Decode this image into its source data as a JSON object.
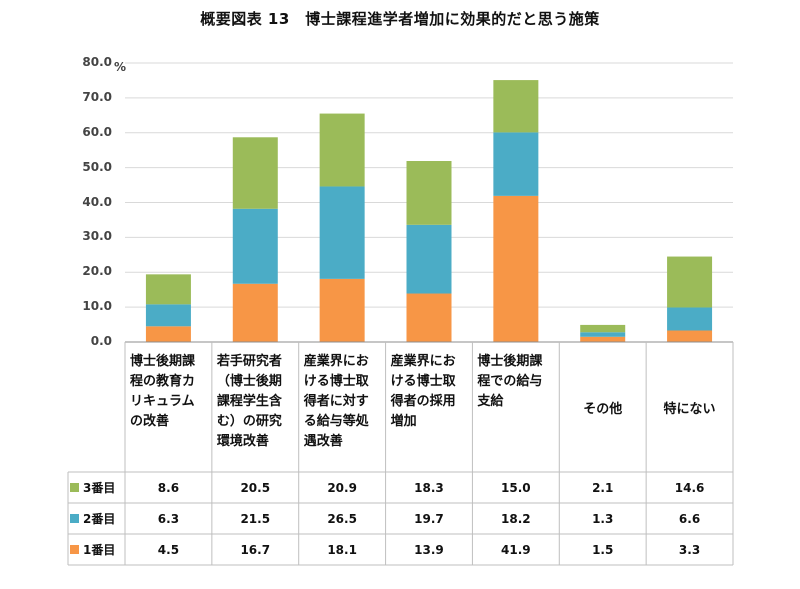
{
  "chart_data": {
    "type": "bar",
    "stacked": true,
    "title": "概要図表 13　博士課程進学者増加に効果的だと思う施策",
    "unit": "%",
    "ylim": [
      0,
      80
    ],
    "yticks": [
      "80.0",
      "70.0",
      "60.0",
      "50.0",
      "40.0",
      "30.0",
      "20.0",
      "10.0",
      "0.0"
    ],
    "grid": true,
    "categories": [
      "博士後期課程の教育カリキュラムの改善",
      "若手研究者（博士後期課程学生含む）の研究環境改善",
      "産業界における博士取得者に対する給与等処遇改善",
      "産業界における博士取得者の採用増加",
      "博士後期課程での給与支給",
      "その他",
      "特にない"
    ],
    "series": [
      {
        "name": "3番目",
        "color": "#9bbb59",
        "values": [
          8.6,
          20.5,
          20.9,
          18.3,
          15.0,
          2.1,
          14.6
        ],
        "labels": [
          "8.6",
          "20.5",
          "20.9",
          "18.3",
          "15.0",
          "2.1",
          "14.6"
        ]
      },
      {
        "name": "2番目",
        "color": "#4bacc6",
        "values": [
          6.3,
          21.5,
          26.5,
          19.7,
          18.2,
          1.3,
          6.6
        ],
        "labels": [
          "6.3",
          "21.5",
          "26.5",
          "19.7",
          "18.2",
          "1.3",
          "6.6"
        ]
      },
      {
        "name": "1番目",
        "color": "#f79646",
        "values": [
          4.5,
          16.7,
          18.1,
          13.9,
          41.9,
          1.5,
          3.3
        ],
        "labels": [
          "4.5",
          "16.7",
          "18.1",
          "13.9",
          "41.9",
          "1.5",
          "3.3"
        ]
      }
    ]
  }
}
